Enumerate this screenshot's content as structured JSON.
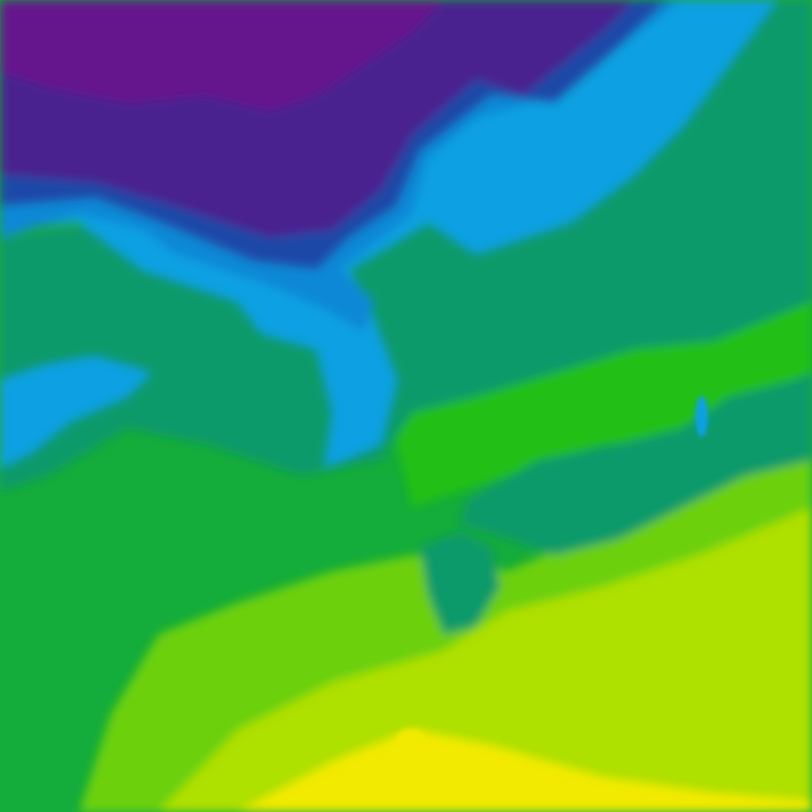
{
  "map": {
    "type": "temperature-field",
    "palette": {
      "coldest": "#7a0f8c",
      "very_cold": "#4a2390",
      "cold": "#1e4aa8",
      "cool": "#0a88d6",
      "mild_cool": "#08a0e2",
      "teal": "#0e9a6a",
      "green": "#14ac3a",
      "bright_green": "#22c018",
      "lime": "#6cd00c",
      "yellow_green": "#aee000",
      "yellow": "#f2ea00"
    }
  }
}
